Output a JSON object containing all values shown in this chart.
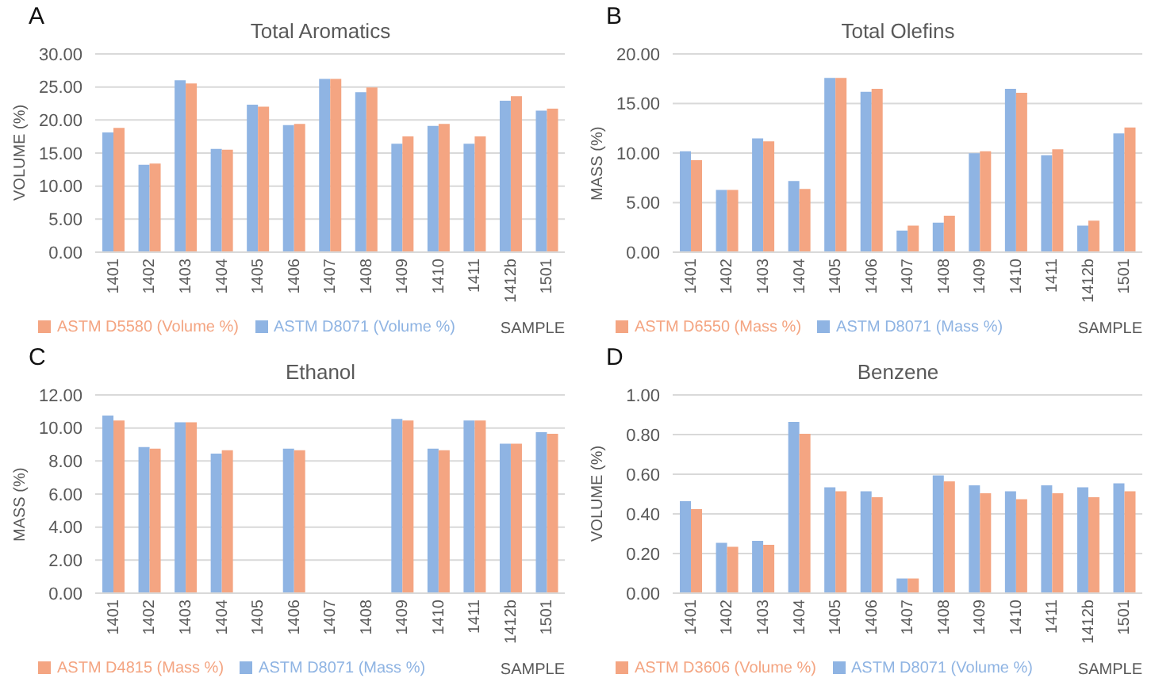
{
  "chart_data": [
    {
      "type": "bar",
      "title": "Total Aromatics",
      "annotations": [
        "A"
      ],
      "xlabel": "SAMPLE",
      "ylabel": "VOLUME (%)",
      "categories": [
        "1401",
        "1402",
        "1403",
        "1404",
        "1405",
        "1406",
        "1407",
        "1408",
        "1409",
        "1410",
        "1411",
        "1412b",
        "1501"
      ],
      "series": [
        {
          "name": "ASTM D8071 (Volume %)",
          "color": "#8fb4e3",
          "values": [
            18.0,
            13.1,
            25.9,
            15.5,
            22.2,
            19.1,
            26.1,
            24.1,
            16.3,
            19.0,
            16.3,
            22.8,
            21.3
          ]
        },
        {
          "name": "ASTM D5580 (Volume %)",
          "color": "#f4a582",
          "values": [
            18.7,
            13.3,
            25.4,
            15.4,
            21.9,
            19.3,
            26.1,
            24.8,
            17.4,
            19.3,
            17.4,
            23.5,
            21.6
          ]
        }
      ],
      "ylim": [
        0,
        30
      ],
      "yticks": [
        {
          "value": 0,
          "label": "0.00"
        },
        {
          "value": 5,
          "label": "5.00"
        },
        {
          "value": 10,
          "label": "10.00"
        },
        {
          "value": 15,
          "label": "15.00"
        },
        {
          "value": 20,
          "label": "20.00"
        },
        {
          "value": 25,
          "label": "25.00"
        },
        {
          "value": 30,
          "label": "30.00"
        }
      ],
      "grid": "y",
      "legend": "bottom"
    },
    {
      "type": "bar",
      "title": "Total Olefins",
      "annotations": [
        "B"
      ],
      "xlabel": "SAMPLE",
      "ylabel": "MASS (%)",
      "categories": [
        "1401",
        "1402",
        "1403",
        "1404",
        "1405",
        "1406",
        "1407",
        "1408",
        "1409",
        "1410",
        "1411",
        "1412b",
        "1501"
      ],
      "series": [
        {
          "name": "ASTM D8071 (Mass %)",
          "color": "#8fb4e3",
          "values": [
            10.1,
            6.2,
            11.4,
            7.1,
            17.5,
            16.1,
            2.1,
            2.9,
            9.9,
            16.4,
            9.7,
            2.6,
            11.9
          ]
        },
        {
          "name": "ASTM D6550 (Mass %)",
          "color": "#f4a582",
          "values": [
            9.2,
            6.2,
            11.1,
            6.3,
            17.5,
            16.4,
            2.6,
            3.6,
            10.1,
            16.0,
            10.3,
            3.1,
            12.5
          ]
        }
      ],
      "ylim": [
        0,
        20
      ],
      "yticks": [
        {
          "value": 0,
          "label": "0.00"
        },
        {
          "value": 5,
          "label": "5.00"
        },
        {
          "value": 10,
          "label": "10.00"
        },
        {
          "value": 15,
          "label": "15.00"
        },
        {
          "value": 20,
          "label": "20.00"
        }
      ],
      "grid": "y",
      "legend": "bottom"
    },
    {
      "type": "bar",
      "title": "Ethanol",
      "annotations": [
        "C"
      ],
      "xlabel": "SAMPLE",
      "ylabel": "MASS (%)",
      "categories": [
        "1401",
        "1402",
        "1403",
        "1404",
        "1405",
        "1406",
        "1407",
        "1408",
        "1409",
        "1410",
        "1411",
        "1412b",
        "1501"
      ],
      "series": [
        {
          "name": "ASTM D8071 (Mass %)",
          "color": "#8fb4e3",
          "values": [
            10.7,
            8.8,
            10.3,
            8.4,
            0,
            8.7,
            0,
            0,
            10.5,
            8.7,
            10.4,
            9.0,
            9.7
          ]
        },
        {
          "name": "ASTM D4815 (Mass %)",
          "color": "#f4a582",
          "values": [
            10.4,
            8.7,
            10.3,
            8.6,
            0,
            8.6,
            0,
            0,
            10.4,
            8.6,
            10.4,
            9.0,
            9.6
          ]
        }
      ],
      "ylim": [
        0,
        12
      ],
      "yticks": [
        {
          "value": 0,
          "label": "0.00"
        },
        {
          "value": 2,
          "label": "2.00"
        },
        {
          "value": 4,
          "label": "4.00"
        },
        {
          "value": 6,
          "label": "6.00"
        },
        {
          "value": 8,
          "label": "8.00"
        },
        {
          "value": 10,
          "label": "10.00"
        },
        {
          "value": 12,
          "label": "12.00"
        }
      ],
      "grid": "y",
      "legend": "bottom"
    },
    {
      "type": "bar",
      "title": "Benzene",
      "annotations": [
        "D"
      ],
      "xlabel": "SAMPLE",
      "ylabel": "VOLUME (%)",
      "categories": [
        "1401",
        "1402",
        "1403",
        "1404",
        "1405",
        "1406",
        "1407",
        "1408",
        "1409",
        "1410",
        "1411",
        "1412b",
        "1501"
      ],
      "series": [
        {
          "name": "ASTM D8071 (Volume %)",
          "color": "#8fb4e3",
          "values": [
            0.46,
            0.25,
            0.26,
            0.86,
            0.53,
            0.51,
            0.07,
            0.59,
            0.54,
            0.51,
            0.54,
            0.53,
            0.55
          ]
        },
        {
          "name": "ASTM D3606 (Volume %)",
          "color": "#f4a582",
          "values": [
            0.42,
            0.23,
            0.24,
            0.8,
            0.51,
            0.48,
            0.07,
            0.56,
            0.5,
            0.47,
            0.5,
            0.48,
            0.51
          ]
        }
      ],
      "ylim": [
        0,
        1
      ],
      "yticks": [
        {
          "value": 0,
          "label": "0.00"
        },
        {
          "value": 0.2,
          "label": "0.20"
        },
        {
          "value": 0.4,
          "label": "0.40"
        },
        {
          "value": 0.6,
          "label": "0.60"
        },
        {
          "value": 0.8,
          "label": "0.80"
        },
        {
          "value": 1,
          "label": "1.00"
        }
      ],
      "grid": "y",
      "legend": "bottom"
    }
  ]
}
